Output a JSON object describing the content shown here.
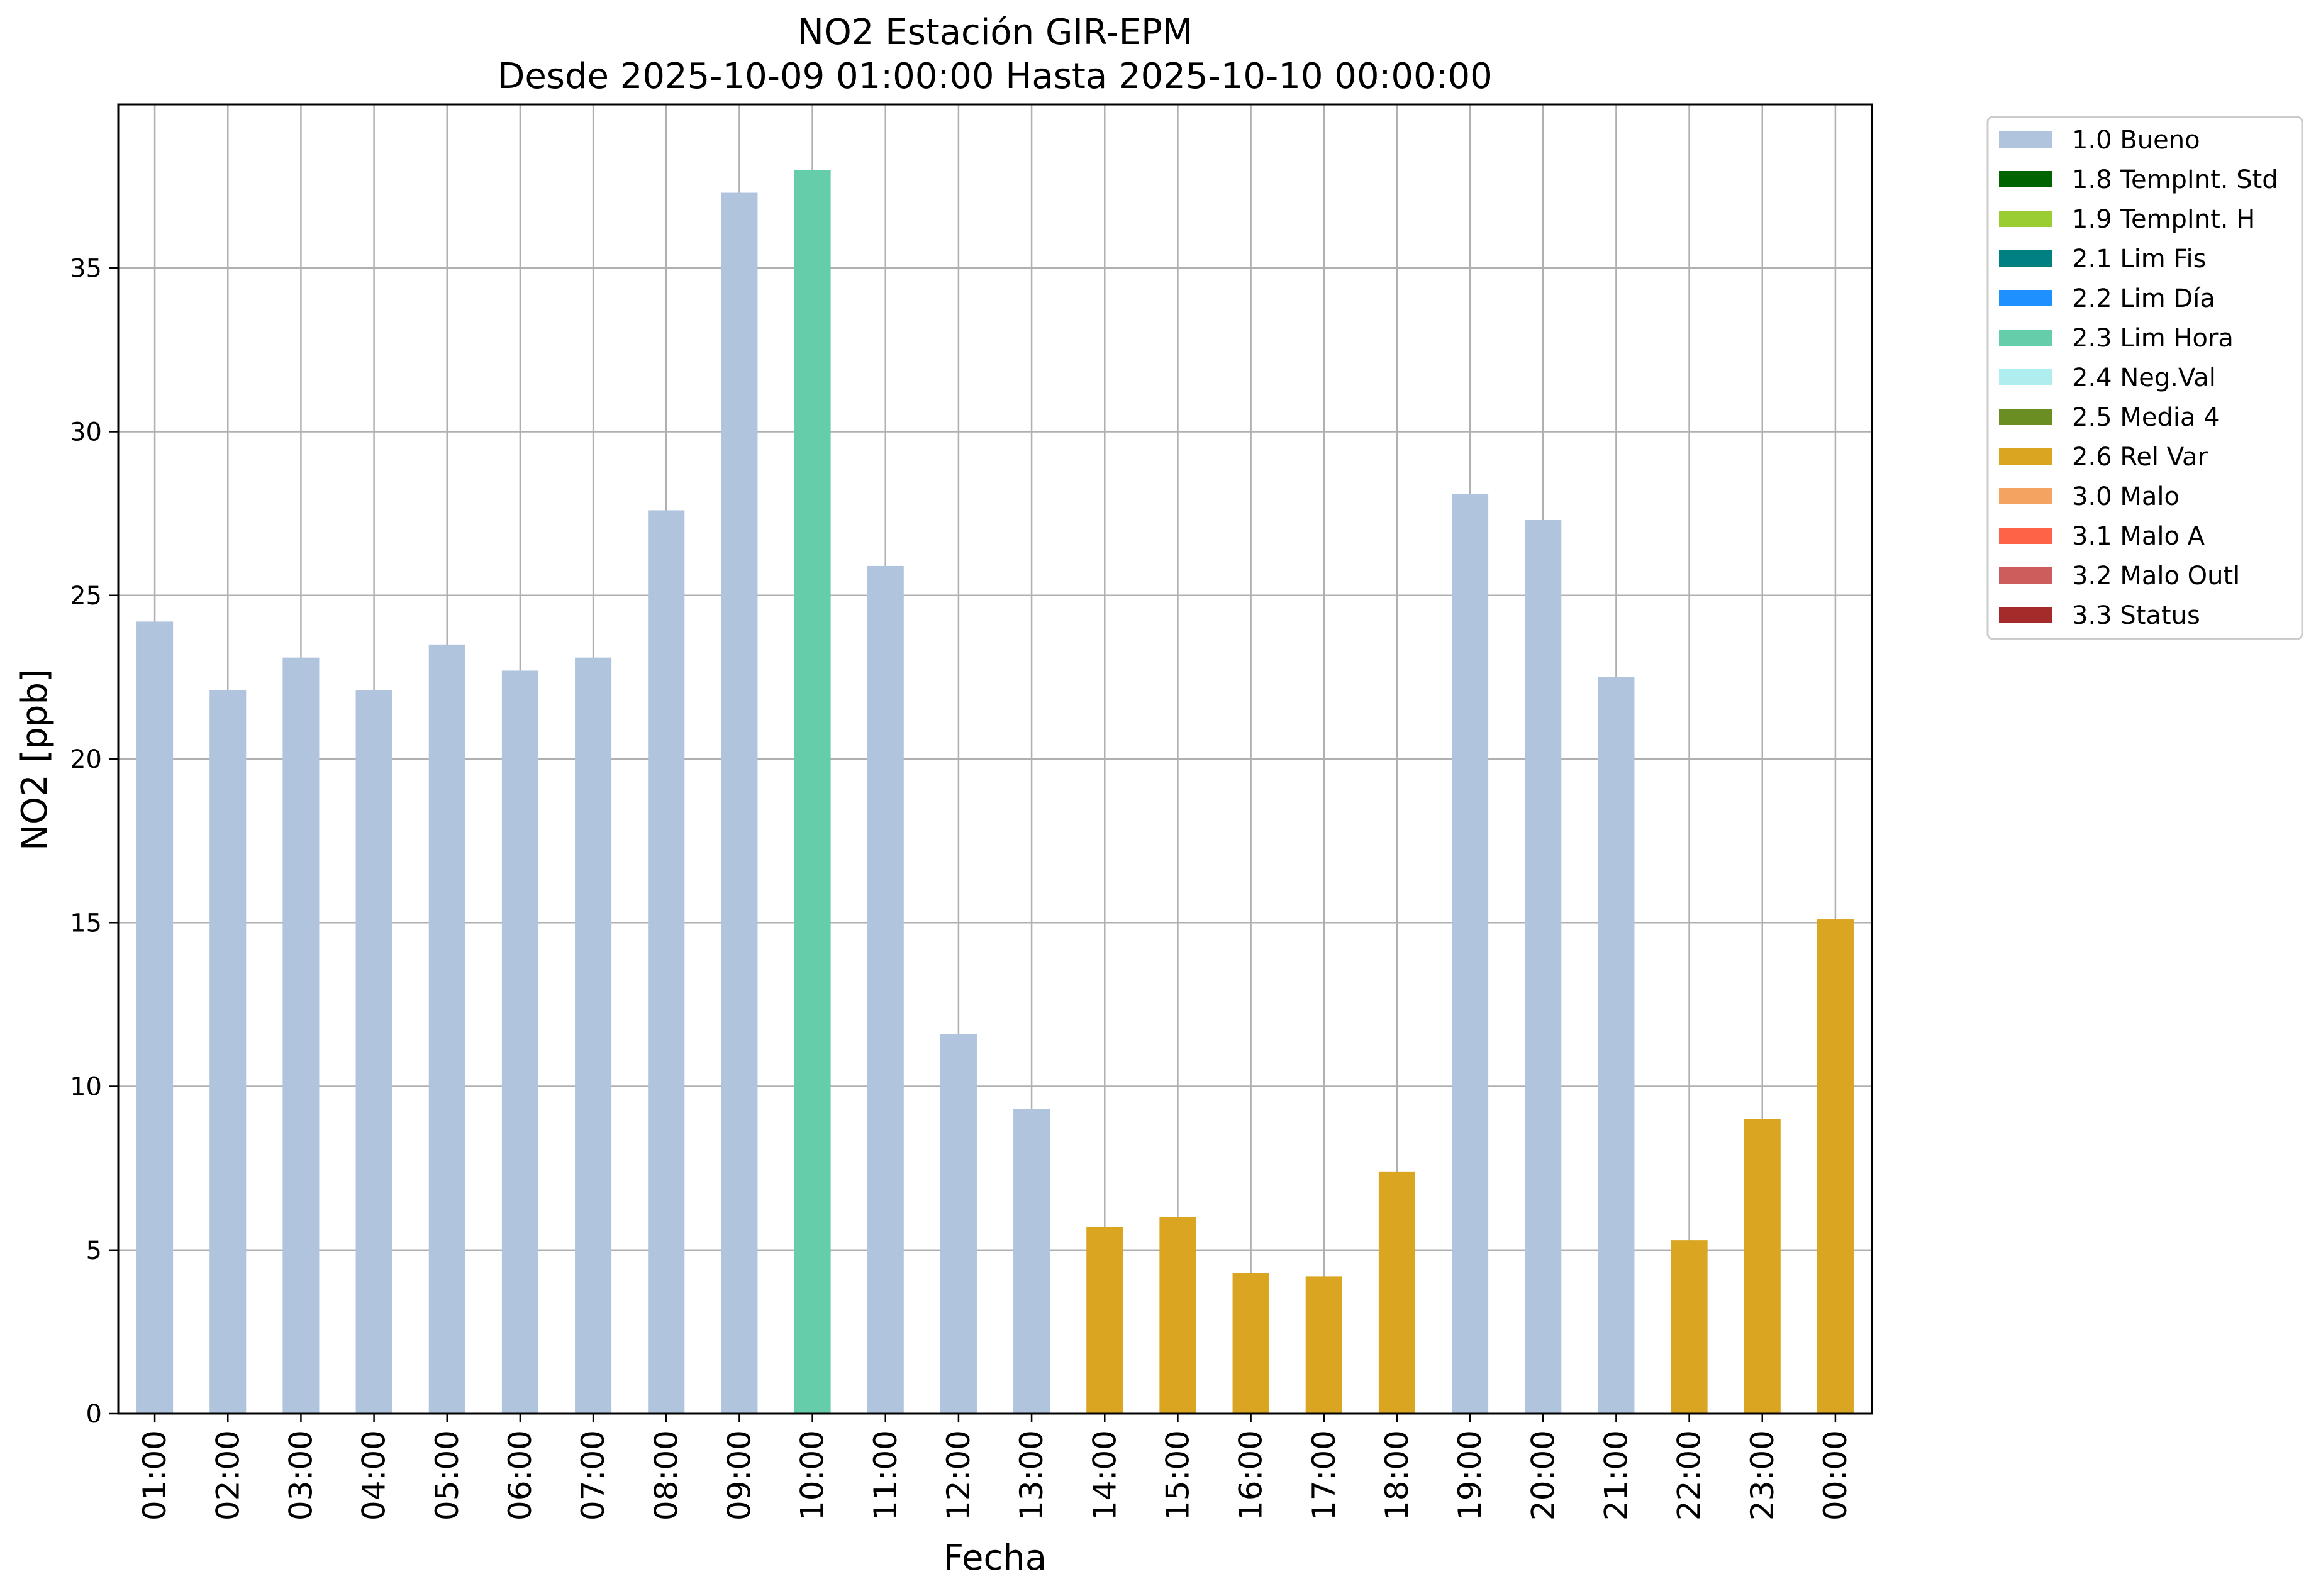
{
  "chart_data": {
    "type": "bar",
    "title": "NO2 Estación GIR-EPM",
    "subtitle": "Desde 2025-10-09 01:00:00 Hasta 2025-10-10 00:00:00",
    "xlabel": "Fecha",
    "ylabel": "NO2 [ppb]",
    "ylim": [
      0,
      40
    ],
    "yticks": [
      0,
      5,
      10,
      15,
      20,
      25,
      30,
      35
    ],
    "grid": true,
    "legend_position": "outside-top-right",
    "categories": [
      "01:00",
      "02:00",
      "03:00",
      "04:00",
      "05:00",
      "06:00",
      "07:00",
      "08:00",
      "09:00",
      "10:00",
      "11:00",
      "12:00",
      "13:00",
      "14:00",
      "15:00",
      "16:00",
      "17:00",
      "18:00",
      "19:00",
      "20:00",
      "21:00",
      "22:00",
      "23:00",
      "00:00"
    ],
    "values": [
      24.2,
      22.1,
      23.1,
      22.1,
      23.5,
      22.7,
      23.1,
      27.6,
      37.3,
      38.0,
      25.9,
      11.6,
      9.3,
      5.7,
      6.0,
      4.3,
      4.2,
      7.4,
      28.1,
      27.3,
      22.5,
      5.3,
      9.0,
      15.1
    ],
    "flags": [
      "1.0 Bueno",
      "1.0 Bueno",
      "1.0 Bueno",
      "1.0 Bueno",
      "1.0 Bueno",
      "1.0 Bueno",
      "1.0 Bueno",
      "1.0 Bueno",
      "1.0 Bueno",
      "2.3 Lim Hora",
      "1.0 Bueno",
      "1.0 Bueno",
      "1.0 Bueno",
      "2.6 Rel Var",
      "2.6 Rel Var",
      "2.6 Rel Var",
      "2.6 Rel Var",
      "2.6 Rel Var",
      "1.0 Bueno",
      "1.0 Bueno",
      "1.0 Bueno",
      "2.6 Rel Var",
      "2.6 Rel Var",
      "2.6 Rel Var"
    ],
    "legend": [
      {
        "label": "1.0 Bueno",
        "color": "#b0c4de"
      },
      {
        "label": "1.8 TempInt. Std",
        "color": "#006400"
      },
      {
        "label": "1.9 TempInt. H",
        "color": "#9acd32"
      },
      {
        "label": "2.1 Lim Fis",
        "color": "#008080"
      },
      {
        "label": "2.2 Lim Día",
        "color": "#1e90ff"
      },
      {
        "label": "2.3 Lim Hora",
        "color": "#66cdaa"
      },
      {
        "label": "2.4 Neg.Val",
        "color": "#afeeee"
      },
      {
        "label": "2.5 Media 4",
        "color": "#6b8e23"
      },
      {
        "label": "2.6 Rel Var",
        "color": "#daa520"
      },
      {
        "label": "3.0 Malo",
        "color": "#f4a460"
      },
      {
        "label": "3.1 Malo A",
        "color": "#ff6347"
      },
      {
        "label": "3.2 Malo Outl",
        "color": "#cd5c5c"
      },
      {
        "label": "3.3 Status",
        "color": "#a52a2a"
      }
    ]
  }
}
